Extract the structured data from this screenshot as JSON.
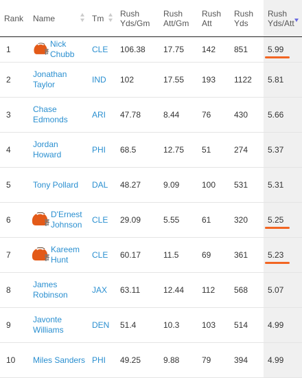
{
  "columns": [
    {
      "key": "rank",
      "label": "Rank"
    },
    {
      "key": "name",
      "label": "Name"
    },
    {
      "key": "team",
      "label": "Tm"
    },
    {
      "key": "yds_gm",
      "label": "Rush Yds/Gm"
    },
    {
      "key": "att_gm",
      "label": "Rush Att/Gm"
    },
    {
      "key": "att",
      "label": "Rush Att"
    },
    {
      "key": "yds",
      "label": "Rush Yds"
    },
    {
      "key": "yds_att",
      "label": "Rush Yds/Att"
    }
  ],
  "sorted_column": "yds_att",
  "highlight_color": "#f26522",
  "link_color": "#2a8fd0",
  "rows": [
    {
      "rank": "1",
      "name": "Nick Chubb",
      "team": "CLE",
      "yds_gm": "106.38",
      "att_gm": "17.75",
      "att": "142",
      "yds": "851",
      "yds_att": "5.99",
      "helmet": "browns-helmet-icon",
      "underlined": true
    },
    {
      "rank": "2",
      "name": "Jonathan Taylor",
      "team": "IND",
      "yds_gm": "102",
      "att_gm": "17.55",
      "att": "193",
      "yds": "1122",
      "yds_att": "5.81",
      "helmet": null,
      "underlined": false
    },
    {
      "rank": "3",
      "name": "Chase Edmonds",
      "team": "ARI",
      "yds_gm": "47.78",
      "att_gm": "8.44",
      "att": "76",
      "yds": "430",
      "yds_att": "5.66",
      "helmet": null,
      "underlined": false
    },
    {
      "rank": "4",
      "name": "Jordan Howard",
      "team": "PHI",
      "yds_gm": "68.5",
      "att_gm": "12.75",
      "att": "51",
      "yds": "274",
      "yds_att": "5.37",
      "helmet": null,
      "underlined": false
    },
    {
      "rank": "5",
      "name": "Tony Pollard",
      "team": "DAL",
      "yds_gm": "48.27",
      "att_gm": "9.09",
      "att": "100",
      "yds": "531",
      "yds_att": "5.31",
      "helmet": null,
      "underlined": false
    },
    {
      "rank": "6",
      "name": "D'Ernest Johnson",
      "team": "CLE",
      "yds_gm": "29.09",
      "att_gm": "5.55",
      "att": "61",
      "yds": "320",
      "yds_att": "5.25",
      "helmet": "browns-helmet-icon",
      "underlined": true
    },
    {
      "rank": "7",
      "name": "Kareem Hunt",
      "team": "CLE",
      "yds_gm": "60.17",
      "att_gm": "11.5",
      "att": "69",
      "yds": "361",
      "yds_att": "5.23",
      "helmet": "browns-helmet-icon",
      "underlined": true
    },
    {
      "rank": "8",
      "name": "James Robinson",
      "team": "JAX",
      "yds_gm": "63.11",
      "att_gm": "12.44",
      "att": "112",
      "yds": "568",
      "yds_att": "5.07",
      "helmet": null,
      "underlined": false
    },
    {
      "rank": "9",
      "name": "Javonte Williams",
      "team": "DEN",
      "yds_gm": "51.4",
      "att_gm": "10.3",
      "att": "103",
      "yds": "514",
      "yds_att": "4.99",
      "helmet": null,
      "underlined": false
    },
    {
      "rank": "10",
      "name": "Miles Sanders",
      "team": "PHI",
      "yds_gm": "49.25",
      "att_gm": "9.88",
      "att": "79",
      "yds": "394",
      "yds_att": "4.99",
      "helmet": null,
      "underlined": false
    }
  ]
}
